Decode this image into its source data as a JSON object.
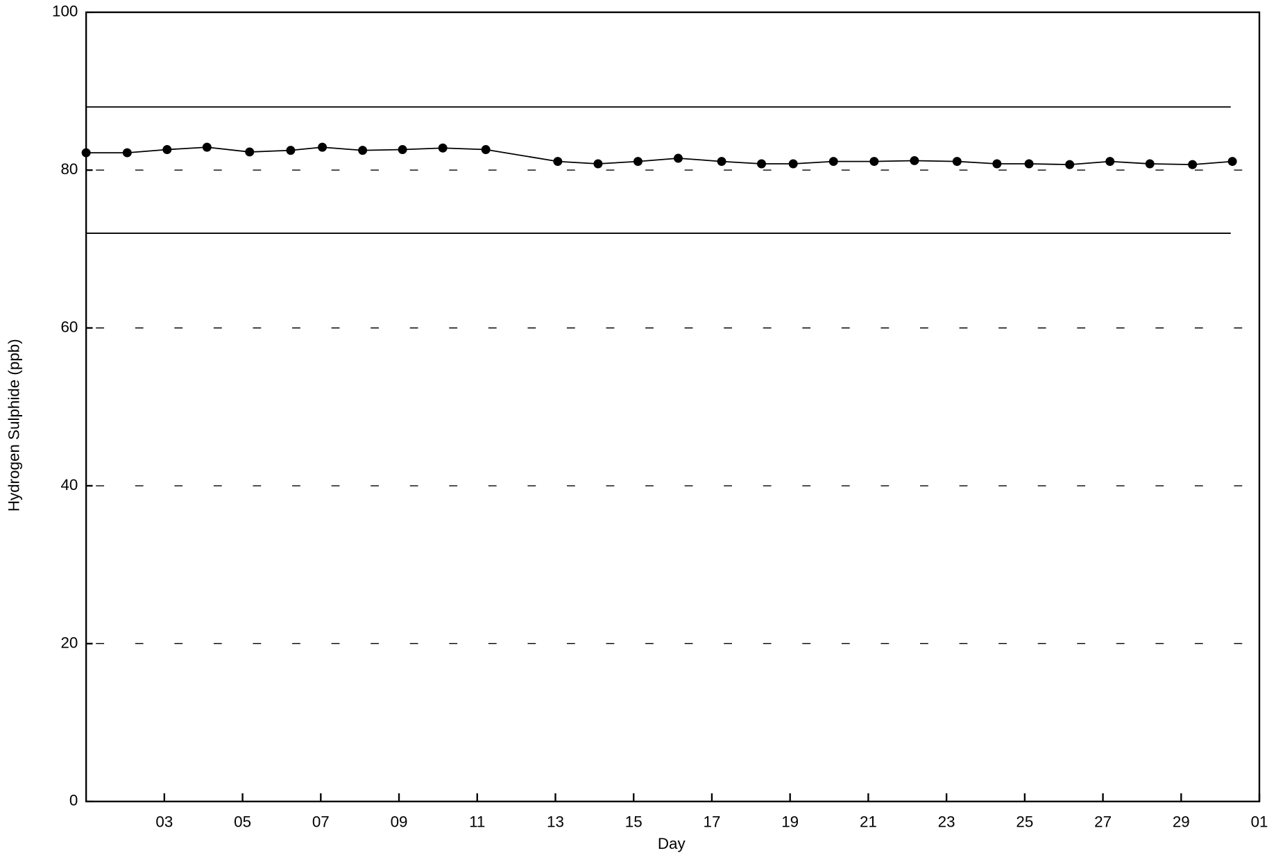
{
  "chart_data": {
    "type": "line",
    "x_label": "Day",
    "y_label": "Hydrogen Sulphide (ppb)",
    "x": [
      1.0,
      2.05,
      3.07,
      4.09,
      5.18,
      6.23,
      7.04,
      8.07,
      9.09,
      10.12,
      11.22,
      13.06,
      14.09,
      15.11,
      16.14,
      17.25,
      18.27,
      19.08,
      20.11,
      21.15,
      22.18,
      23.27,
      24.29,
      25.11,
      26.15,
      27.18,
      28.2,
      29.29,
      30.31
    ],
    "series": [
      {
        "color": "#000000",
        "values": [
          82.2,
          82.2,
          82.6,
          82.9,
          82.3,
          82.5,
          82.9,
          82.5,
          82.6,
          82.8,
          82.6,
          81.1,
          80.8,
          81.1,
          81.5,
          81.1,
          80.8,
          80.8,
          81.1,
          81.1,
          81.2,
          81.1,
          80.8,
          80.8,
          80.7,
          81.1,
          80.8,
          80.7,
          81.1
        ]
      }
    ],
    "reference_lines": [
      88,
      72
    ],
    "xlim": [
      1,
      31
    ],
    "xticks": [
      {
        "value": 3,
        "label": "03"
      },
      {
        "value": 5,
        "label": "05"
      },
      {
        "value": 7,
        "label": "07"
      },
      {
        "value": 9,
        "label": "09"
      },
      11,
      13,
      15,
      17,
      19,
      21,
      23,
      25,
      27,
      29,
      {
        "value": 31,
        "label": "01"
      }
    ],
    "ylim": [
      0,
      100
    ],
    "yticks": [
      0,
      20,
      40,
      60,
      80,
      100
    ],
    "grid": true
  }
}
